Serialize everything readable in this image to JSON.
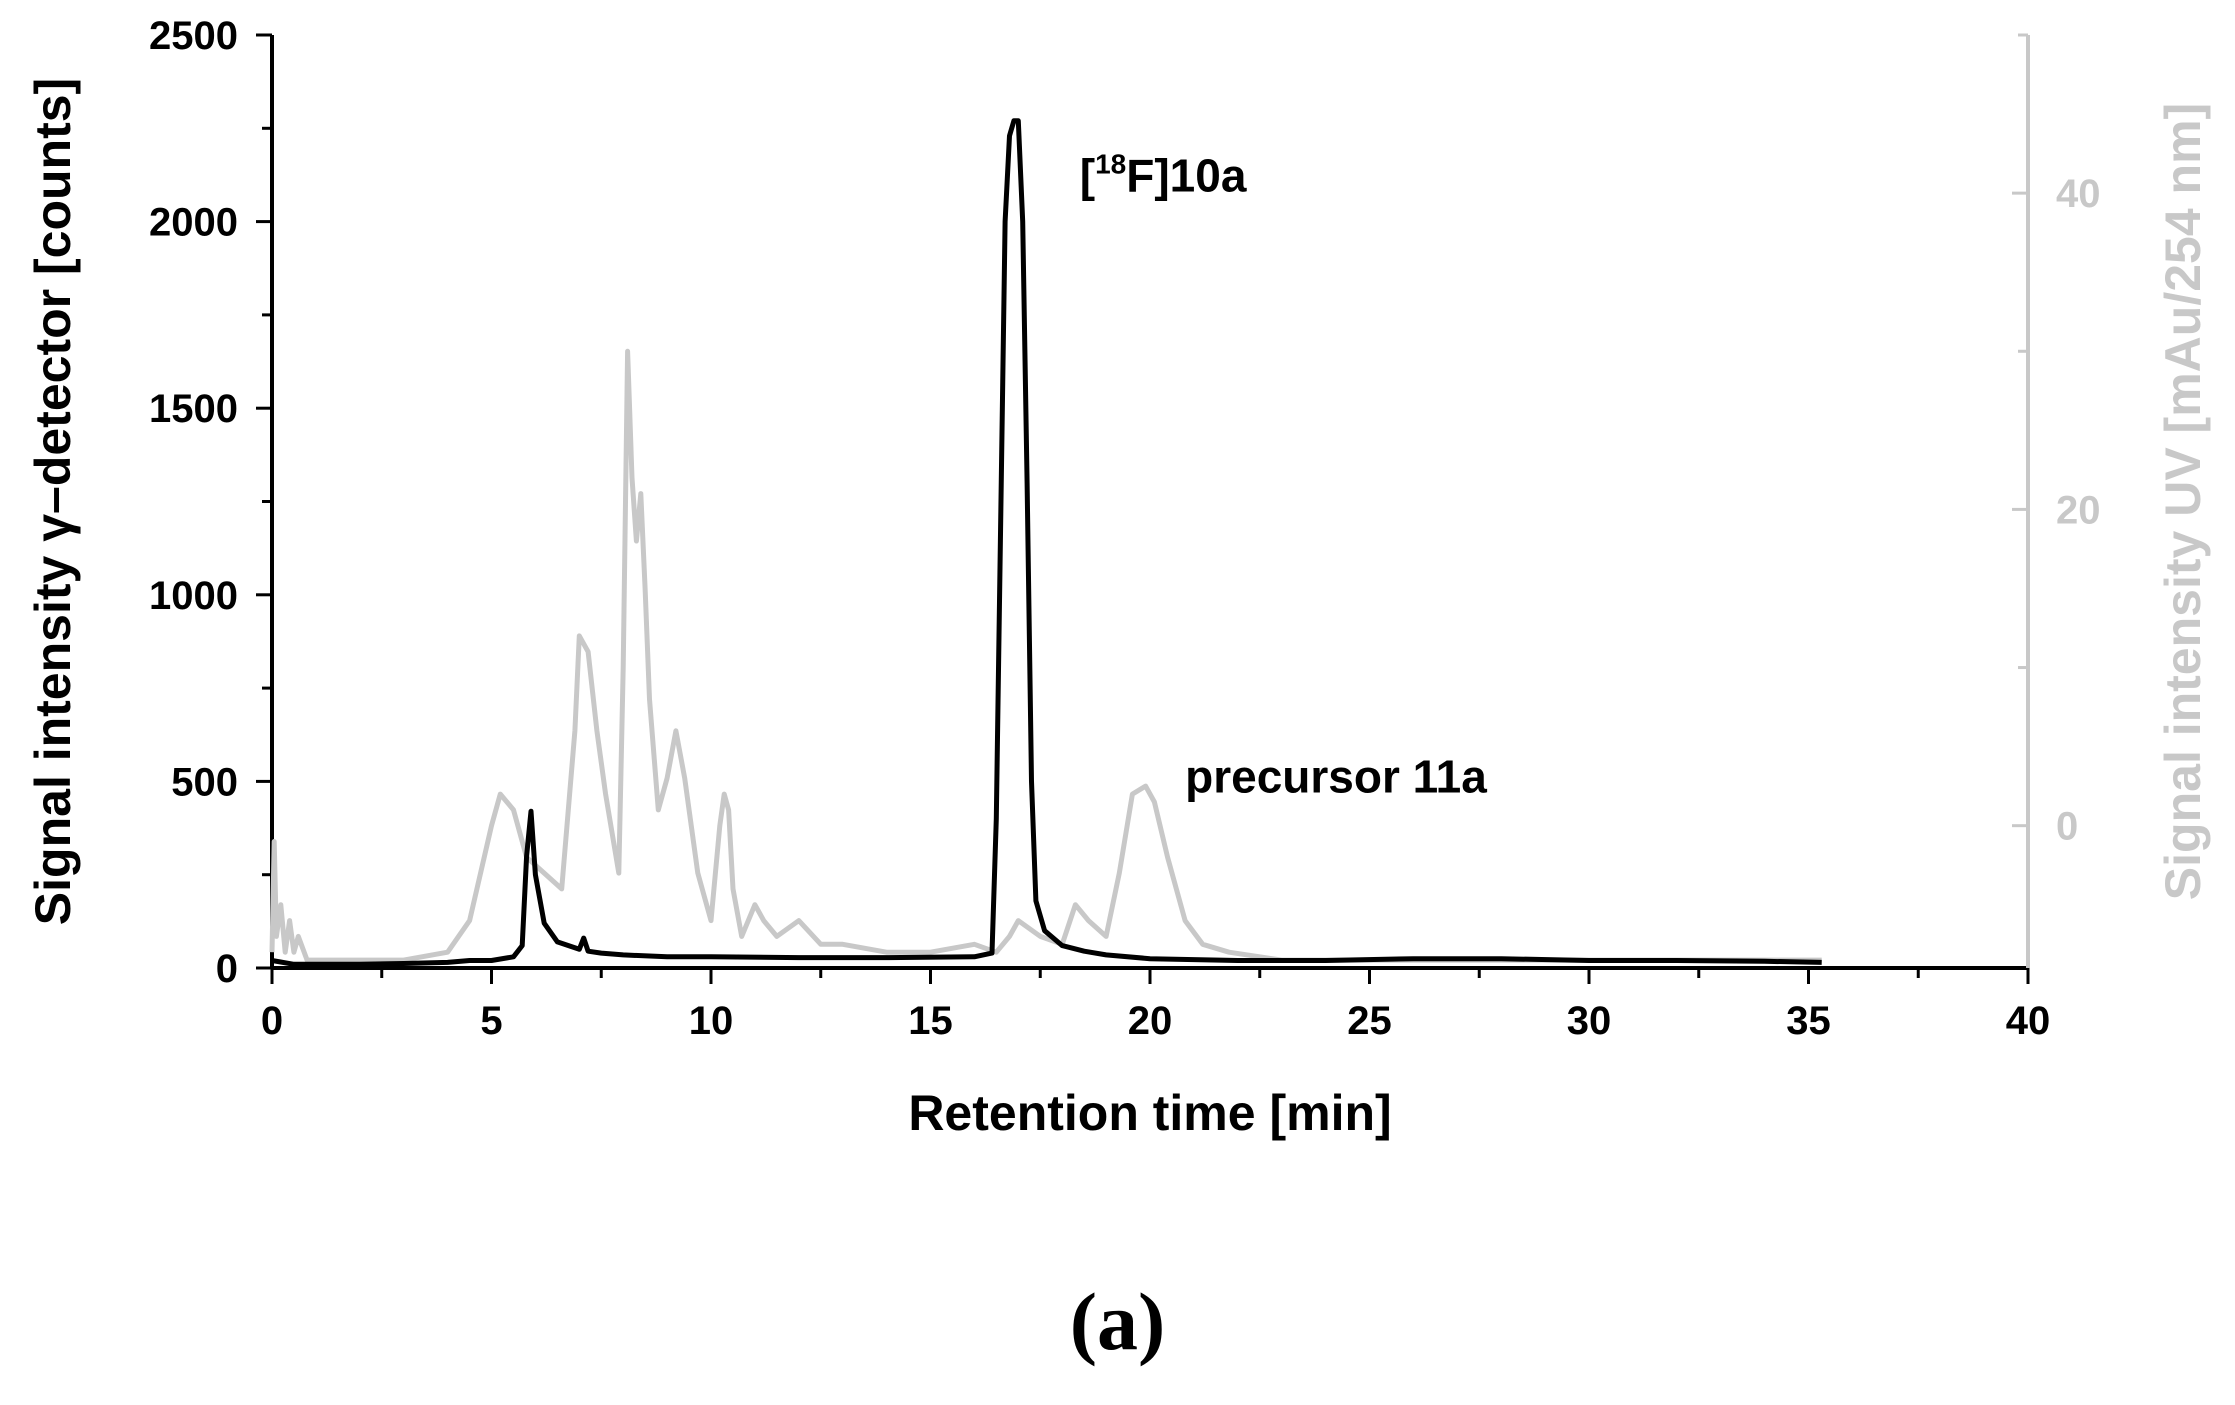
{
  "panel_label": "(a)",
  "colors": {
    "gamma": "#000000",
    "uv": "#c8c8c8",
    "axis": "#000000",
    "right_axis": "#c8c8c8"
  },
  "chart_data": {
    "type": "line",
    "title": "",
    "xlabel": "Retention time [min]",
    "ylabel": "Signal intensity γ–detector [counts]",
    "y2label": "Signal intensity UV [mAu/254 nm]",
    "xlim": [
      0,
      40
    ],
    "ylim": [
      0,
      2500
    ],
    "y2lim": [
      -9,
      50
    ],
    "xticks": [
      0,
      5,
      10,
      15,
      20,
      25,
      30,
      35,
      40
    ],
    "yticks": [
      0,
      500,
      1000,
      1500,
      2000,
      2500
    ],
    "y2ticks": [
      0,
      20,
      40
    ],
    "grid": false,
    "annotations": {
      "product": {
        "prefix": "[",
        "sup": "18",
        "suffix": "F]10a",
        "x": 18.4,
        "y": 2080
      },
      "precursor": {
        "text": "precursor 11a",
        "x": 20.8,
        "y": 470
      }
    },
    "series": [
      {
        "axis": "left",
        "x": [
          0,
          0.5,
          1,
          2,
          3,
          4,
          4.5,
          5,
          5.5,
          5.7,
          5.8,
          5.9,
          6.0,
          6.2,
          6.5,
          7.0,
          7.1,
          7.2,
          7.5,
          8,
          9,
          10,
          12,
          14,
          16,
          16.4,
          16.5,
          16.6,
          16.7,
          16.8,
          16.9,
          17.0,
          17.1,
          17.2,
          17.3,
          17.4,
          17.6,
          18.0,
          18.5,
          19.0,
          20.0,
          22.0,
          24.0,
          26,
          28,
          30,
          32,
          34,
          35.3
        ],
        "y": [
          20,
          10,
          10,
          10,
          12,
          15,
          20,
          20,
          30,
          60,
          300,
          420,
          250,
          120,
          70,
          50,
          80,
          45,
          40,
          35,
          30,
          30,
          28,
          28,
          30,
          40,
          400,
          1200,
          2000,
          2230,
          2270,
          2270,
          2000,
          1300,
          500,
          180,
          100,
          60,
          45,
          35,
          25,
          20,
          20,
          25,
          25,
          20,
          20,
          18,
          15
        ]
      },
      {
        "axis": "right",
        "x": [
          0,
          0.05,
          0.1,
          0.2,
          0.3,
          0.4,
          0.5,
          0.6,
          0.8,
          1,
          2,
          3,
          4,
          4.5,
          5,
          5.2,
          5.5,
          5.8,
          6.2,
          6.6,
          6.9,
          7.0,
          7.2,
          7.4,
          7.6,
          7.9,
          8.0,
          8.1,
          8.2,
          8.3,
          8.4,
          8.5,
          8.6,
          8.8,
          9.0,
          9.2,
          9.4,
          9.7,
          10.0,
          10.2,
          10.3,
          10.4,
          10.5,
          10.7,
          11.0,
          11.2,
          11.5,
          12.0,
          12.5,
          13,
          14,
          15,
          16,
          16.5,
          16.8,
          17.0,
          17.5,
          18.0,
          18.3,
          18.6,
          19.0,
          19.3,
          19.6,
          19.9,
          20.1,
          20.4,
          20.8,
          21.2,
          21.8,
          23,
          24,
          25,
          28,
          30,
          32,
          33.4,
          34,
          35.3
        ],
        "y": [
          -8,
          -1,
          -7,
          -5,
          -8,
          -6,
          -8,
          -7,
          -8.5,
          -8.5,
          -8.5,
          -8.5,
          -8,
          -6,
          0,
          2,
          1,
          -2,
          -3,
          -4,
          6,
          12,
          11,
          6,
          2,
          -3,
          10,
          30,
          22,
          18,
          21,
          15,
          8,
          1,
          3,
          6,
          3,
          -3,
          -6,
          0,
          2,
          1,
          -4,
          -7,
          -5,
          -6,
          -7,
          -6,
          -7.5,
          -7.5,
          -8,
          -8,
          -7.5,
          -8,
          -7,
          -6,
          -7,
          -7.5,
          -5,
          -6,
          -7,
          -3,
          2,
          2.5,
          1.5,
          -2,
          -6,
          -7.5,
          -8,
          -8.5,
          -8.5,
          -8.5,
          -8.5,
          -8.5,
          -8.5,
          -8.5,
          -8.5,
          -8.5
        ]
      }
    ]
  }
}
